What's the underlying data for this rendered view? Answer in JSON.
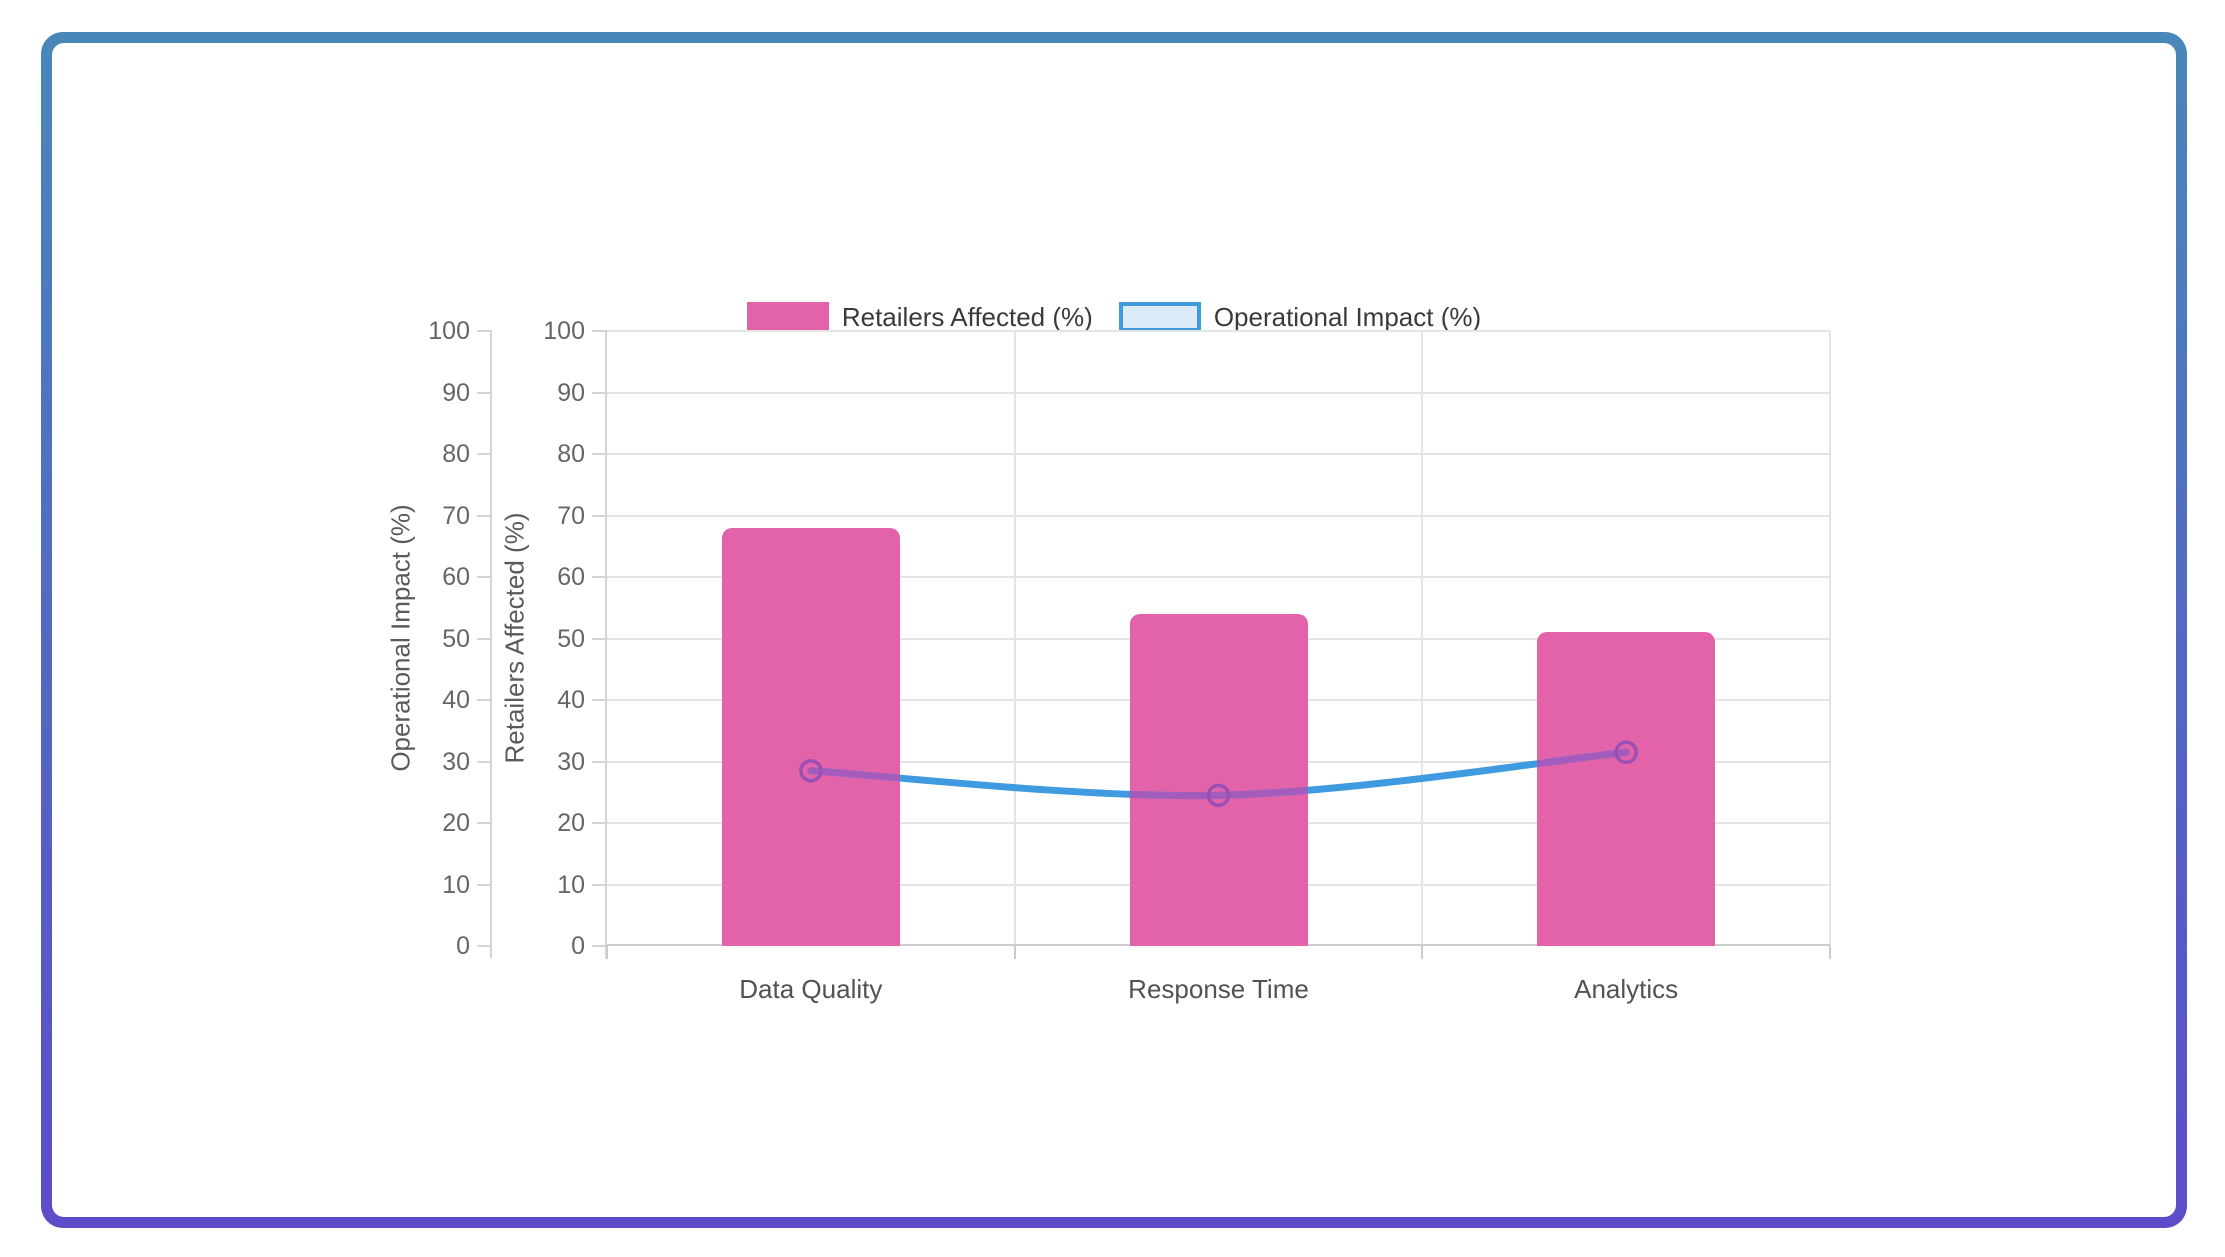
{
  "frame": {
    "gradient_top_color": "#4987B9",
    "gradient_bottom_color": "#5C4CC9",
    "background": "#FFFFFF"
  },
  "chart_data": {
    "type": "combo-bar-line",
    "title": "",
    "categories": [
      "Data Quality",
      "Response Time",
      "Analytics"
    ],
    "series": [
      {
        "kind": "bar",
        "name": "Retailers Affected (%)",
        "values": [
          68,
          54,
          51
        ],
        "color": "#E263A9"
      },
      {
        "kind": "line",
        "name": "Operational Impact (%)",
        "values": [
          28.5,
          24.5,
          31.5
        ],
        "color": "#3F9ADF",
        "color_over_bars": "#A35CBB",
        "marker_color": "#9A4FB5",
        "legend_swatch_fill": "#DCEBFA"
      }
    ],
    "y_axes": [
      {
        "label": "Operational Impact (%)",
        "min": 0,
        "max": 100,
        "step": 10
      },
      {
        "label": "Retailers Affected (%)",
        "min": 0,
        "max": 100,
        "step": 10
      }
    ],
    "grid": true,
    "legend_position": "top",
    "colors": {
      "gridline": "#E4E4E4",
      "axis_line": "#D4D4D4",
      "x_axis_line": "#CCCCCC",
      "tick_text": "#666666",
      "axis_title_text": "#5A5A5A",
      "category_text": "#525252",
      "legend_text": "#3A3A3A"
    }
  }
}
